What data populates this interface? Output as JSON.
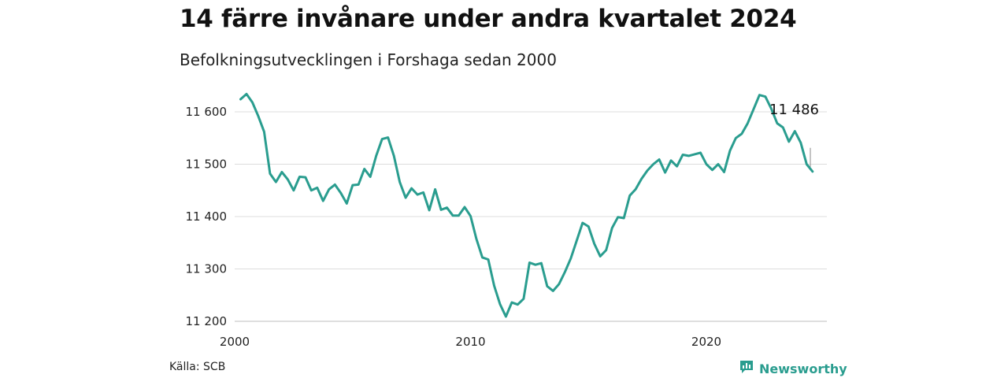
{
  "chart_data": {
    "type": "line",
    "title": "14 färre invånare under andra kvartalet 2024",
    "subtitle": "Befolkningsutvecklingen i Forshaga sedan 2000",
    "xlabel": "",
    "ylabel": "",
    "xlim": [
      2000,
      2025
    ],
    "ylim": [
      11190,
      11680
    ],
    "yticks": [
      11200,
      11300,
      11400,
      11500,
      11600
    ],
    "ytick_labels": [
      "11 200",
      "11 300",
      "11 400",
      "11 500",
      "11 600"
    ],
    "xticks": [
      2000,
      2010,
      2020
    ],
    "xtick_labels": [
      "2000",
      "2010",
      "2020"
    ],
    "grid": "horizontal",
    "color": "#2a9d8f",
    "last_label": "11 486",
    "series": [
      {
        "name": "",
        "x": [
          2000.25,
          2000.5,
          2000.75,
          2001.0,
          2001.25,
          2001.5,
          2001.75,
          2002.0,
          2002.25,
          2002.5,
          2002.75,
          2003.0,
          2003.25,
          2003.5,
          2003.75,
          2004.0,
          2004.25,
          2004.5,
          2004.75,
          2005.0,
          2005.25,
          2005.5,
          2005.75,
          2006.0,
          2006.25,
          2006.5,
          2006.75,
          2007.0,
          2007.25,
          2007.5,
          2007.75,
          2008.0,
          2008.25,
          2008.5,
          2008.75,
          2009.0,
          2009.25,
          2009.5,
          2009.75,
          2010.0,
          2010.25,
          2010.5,
          2010.75,
          2011.0,
          2011.25,
          2011.5,
          2011.75,
          2012.0,
          2012.25,
          2012.5,
          2012.75,
          2013.0,
          2013.25,
          2013.5,
          2013.75,
          2014.0,
          2014.25,
          2014.5,
          2014.75,
          2015.0,
          2015.25,
          2015.5,
          2015.75,
          2016.0,
          2016.25,
          2016.5,
          2016.75,
          2017.0,
          2017.25,
          2017.5,
          2017.75,
          2018.0,
          2018.25,
          2018.5,
          2018.75,
          2019.0,
          2019.25,
          2019.5,
          2019.75,
          2020.0,
          2020.25,
          2020.5,
          2020.75,
          2021.0,
          2021.25,
          2021.5,
          2021.75,
          2022.0,
          2022.25,
          2022.5,
          2022.75,
          2023.0,
          2023.25,
          2023.5,
          2023.75,
          2024.0,
          2024.25,
          2024.5
        ],
        "values": [
          11624,
          11634,
          11618,
          11592,
          11562,
          11482,
          11466,
          11485,
          11471,
          11450,
          11476,
          11475,
          11450,
          11455,
          11430,
          11452,
          11461,
          11445,
          11425,
          11460,
          11461,
          11491,
          11476,
          11516,
          11548,
          11551,
          11516,
          11466,
          11436,
          11454,
          11442,
          11446,
          11412,
          11452,
          11413,
          11417,
          11402,
          11402,
          11418,
          11401,
          11357,
          11322,
          11318,
          11268,
          11233,
          11209,
          11236,
          11232,
          11243,
          11312,
          11308,
          11311,
          11267,
          11258,
          11271,
          11294,
          11320,
          11354,
          11388,
          11381,
          11348,
          11324,
          11336,
          11378,
          11399,
          11397,
          11440,
          11452,
          11472,
          11488,
          11500,
          11509,
          11484,
          11507,
          11496,
          11518,
          11516,
          11519,
          11522,
          11500,
          11489,
          11500,
          11485,
          11526,
          11550,
          11558,
          11578,
          11605,
          11632,
          11629,
          11606,
          11578,
          11570,
          11543,
          11563,
          11541,
          11500,
          11486
        ]
      }
    ]
  },
  "footer": {
    "source": "Källa: SCB",
    "brand": "Newsworthy",
    "brand_icon": "newsworthy-logo-icon"
  }
}
